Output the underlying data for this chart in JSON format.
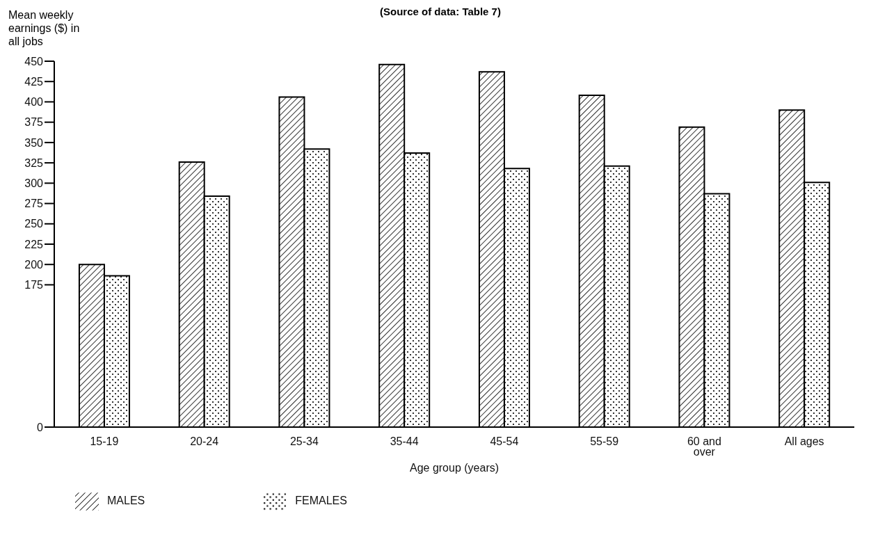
{
  "chart_data": {
    "type": "bar",
    "annotations": [
      "(Source of data: Table 7)"
    ],
    "ylabel": "Mean weekly earnings ($) in all jobs",
    "xlabel": "Age group (years)",
    "categories": [
      "15-19",
      "20-24",
      "25-34",
      "35-44",
      "45-54",
      "55-59",
      "60 and over",
      "All ages"
    ],
    "series": [
      {
        "name": "MALES",
        "color": "#000000",
        "values": [
          200,
          326,
          406,
          446,
          437,
          408,
          369,
          390
        ]
      },
      {
        "name": "FEMALES",
        "color": "#000000",
        "values": [
          186,
          284,
          342,
          337,
          318,
          321,
          287,
          301
        ]
      }
    ],
    "ylim": [
      0,
      450
    ],
    "yticks": [
      0,
      175,
      200,
      225,
      250,
      275,
      300,
      325,
      350,
      375,
      400,
      425,
      450
    ],
    "legend": "bottom left"
  }
}
